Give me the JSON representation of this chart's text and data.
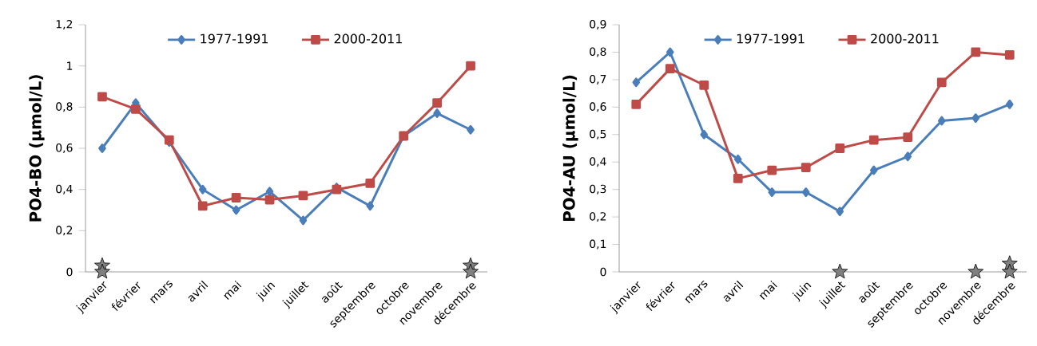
{
  "chart_data": [
    {
      "type": "line",
      "categories": [
        "janvier",
        "février",
        "mars",
        "avril",
        "mai",
        "juin",
        "juillet",
        "août",
        "septembre",
        "octobre",
        "novembre",
        "décembre"
      ],
      "ylabel": "PO4-BO (µmol/L)",
      "ylim": [
        0,
        1.2
      ],
      "yticks": [
        0,
        {
          "value": 0.2,
          "label": "0,2"
        },
        {
          "value": 0.4,
          "label": "0,4"
        },
        {
          "value": 0.6,
          "label": "0,6"
        },
        {
          "value": 0.8,
          "label": "0,8"
        },
        1,
        {
          "value": 1.2,
          "label": "1,2"
        }
      ],
      "legend": "top",
      "grid": false,
      "series": [
        {
          "name": "1977-1991",
          "color": "#4a7ebb",
          "marker": "diamond",
          "values": [
            0.6,
            0.82,
            0.63,
            0.4,
            0.3,
            0.39,
            0.25,
            0.41,
            0.32,
            0.66,
            0.77,
            0.69
          ]
        },
        {
          "name": "2000-2011",
          "color": "#be4b48",
          "marker": "square",
          "values": [
            0.85,
            0.79,
            0.64,
            0.32,
            0.36,
            0.35,
            0.37,
            0.4,
            0.43,
            0.66,
            0.82,
            1.0
          ]
        },
        {
          "type": "scatter",
          "color": "#808080",
          "marker": "star",
          "x": [
            "janvier",
            "janvier",
            "décembre",
            "décembre"
          ],
          "values": [
            0.03,
            0,
            0.03,
            0
          ]
        }
      ]
    },
    {
      "type": "line",
      "categories": [
        "janvier",
        "février",
        "mars",
        "avril",
        "mai",
        "juin",
        "juillet",
        "août",
        "septembre",
        "octobre",
        "novembre",
        "décembre"
      ],
      "ylabel": "PO4-AU (µmol/L)",
      "ylim": [
        0,
        0.9
      ],
      "yticks": [
        0,
        {
          "value": 0.1,
          "label": "0,1"
        },
        {
          "value": 0.2,
          "label": "0,2"
        },
        {
          "value": 0.3,
          "label": "0,3"
        },
        {
          "value": 0.4,
          "label": "0,4"
        },
        {
          "value": 0.5,
          "label": "0,5"
        },
        {
          "value": 0.6,
          "label": "0,6"
        },
        {
          "value": 0.7,
          "label": "0,7"
        },
        {
          "value": 0.8,
          "label": "0,8"
        },
        {
          "value": 0.9,
          "label": "0,9"
        }
      ],
      "legend": "top",
      "grid": false,
      "series": [
        {
          "name": "1977-1991",
          "color": "#4a7ebb",
          "marker": "diamond",
          "values": [
            0.69,
            0.8,
            0.5,
            0.41,
            0.29,
            0.29,
            0.22,
            0.37,
            0.42,
            0.55,
            0.56,
            0.61
          ]
        },
        {
          "name": "2000-2011",
          "color": "#be4b48",
          "marker": "square",
          "values": [
            0.61,
            0.74,
            0.68,
            0.34,
            0.37,
            0.38,
            0.45,
            0.48,
            0.49,
            0.69,
            0.8,
            0.79
          ]
        },
        {
          "type": "scatter",
          "color": "#808080",
          "marker": "star",
          "x": [
            "juillet",
            "novembre",
            "décembre",
            "décembre"
          ],
          "values": [
            0,
            0,
            0.03,
            0
          ]
        }
      ]
    }
  ]
}
